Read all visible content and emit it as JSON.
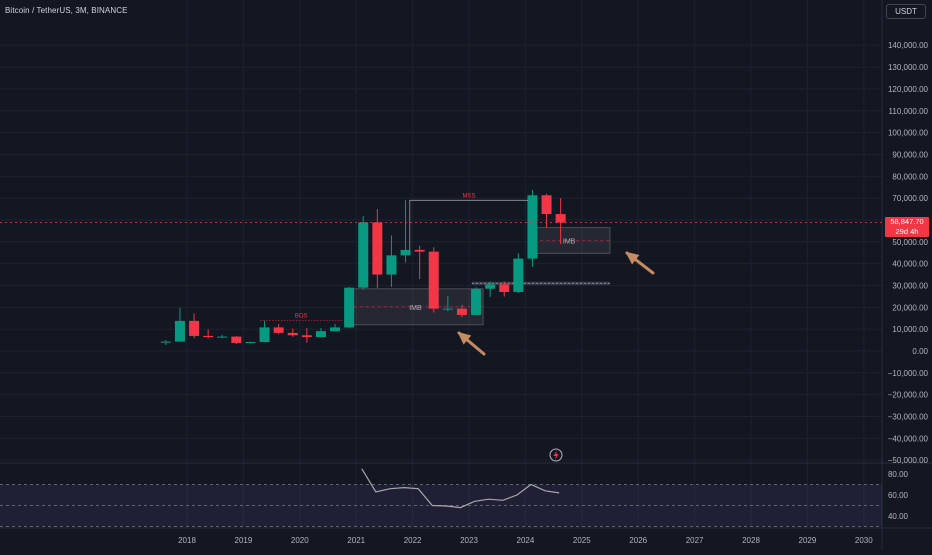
{
  "header": {
    "symbol_title": "Bitcoin / TetherUS, 3M, BINANCE",
    "currency_label": "USDT"
  },
  "price_badge": {
    "price": "58,847.70",
    "countdown": "29d 4h"
  },
  "colors": {
    "background": "#131722",
    "up": "#089981",
    "down": "#f23645",
    "axis_text": "#b2b5be",
    "arrow": "#c58b62",
    "rsi_line": "#a8a8a8",
    "rsi_band": "#7e57c2"
  },
  "chart_data": [
    {
      "type": "candlestick",
      "ylim": [
        -55000,
        150000
      ],
      "xlim": [
        2017.2,
        2030.5
      ],
      "y_ticks": [
        -50000,
        -40000,
        -30000,
        -20000,
        -10000,
        0,
        10000,
        20000,
        30000,
        40000,
        50000,
        60000,
        70000,
        80000,
        90000,
        100000,
        110000,
        120000,
        130000,
        140000
      ],
      "y_tick_labels": [
        "−50,000.00",
        "−40,000.00",
        "−30,000.00",
        "−20,000.00",
        "−10,000.00",
        "0.00",
        "10,000.00",
        "20,000.00",
        "30,000.00",
        "40,000.00",
        "50,000.00",
        "60,000.00",
        "70,000.00",
        "80,000.00",
        "90,000.00",
        "100,000.00",
        "110,000.00",
        "120,000.00",
        "130,000.00",
        "140,000.00"
      ],
      "x_ticks": [
        2018,
        2019,
        2020,
        2021,
        2022,
        2023,
        2024,
        2025,
        2026,
        2027,
        2028,
        2029,
        2030
      ],
      "x_tick_labels": [
        "2018",
        "2019",
        "2020",
        "2021",
        "2022",
        "2023",
        "2024",
        "2025",
        "2026",
        "2027",
        "2028",
        "2029",
        "2030"
      ],
      "last_price": 58847.7,
      "candles": [
        {
          "t": 2017.625,
          "o": 4300,
          "h": 5000,
          "l": 2800,
          "c": 4300
        },
        {
          "t": 2017.875,
          "o": 4300,
          "h": 19800,
          "l": 4300,
          "c": 13800
        },
        {
          "t": 2018.125,
          "o": 13800,
          "h": 17200,
          "l": 5900,
          "c": 6900
        },
        {
          "t": 2018.375,
          "o": 6900,
          "h": 9900,
          "l": 5800,
          "c": 6400
        },
        {
          "t": 2018.625,
          "o": 6400,
          "h": 7400,
          "l": 5900,
          "c": 6600
        },
        {
          "t": 2018.875,
          "o": 6600,
          "h": 6800,
          "l": 3200,
          "c": 3700
        },
        {
          "t": 2019.125,
          "o": 3700,
          "h": 4200,
          "l": 3300,
          "c": 4100
        },
        {
          "t": 2019.375,
          "o": 4100,
          "h": 13900,
          "l": 4000,
          "c": 10800
        },
        {
          "t": 2019.625,
          "o": 10800,
          "h": 12300,
          "l": 7700,
          "c": 8300
        },
        {
          "t": 2019.875,
          "o": 8300,
          "h": 10300,
          "l": 6500,
          "c": 7200
        },
        {
          "t": 2020.125,
          "o": 7200,
          "h": 10500,
          "l": 3800,
          "c": 6400
        },
        {
          "t": 2020.375,
          "o": 6400,
          "h": 10500,
          "l": 6200,
          "c": 9100
        },
        {
          "t": 2020.625,
          "o": 9100,
          "h": 12400,
          "l": 8900,
          "c": 10800
        },
        {
          "t": 2020.875,
          "o": 10800,
          "h": 29300,
          "l": 10400,
          "c": 29000
        },
        {
          "t": 2021.125,
          "o": 29000,
          "h": 61800,
          "l": 28100,
          "c": 58900
        },
        {
          "t": 2021.375,
          "o": 58900,
          "h": 65000,
          "l": 28800,
          "c": 35000
        },
        {
          "t": 2021.625,
          "o": 35000,
          "h": 52900,
          "l": 29300,
          "c": 43800
        },
        {
          "t": 2021.875,
          "o": 43800,
          "h": 69000,
          "l": 40500,
          "c": 46300
        },
        {
          "t": 2022.125,
          "o": 46300,
          "h": 48200,
          "l": 32900,
          "c": 45500
        },
        {
          "t": 2022.375,
          "o": 45500,
          "h": 47500,
          "l": 17600,
          "c": 19400
        },
        {
          "t": 2022.625,
          "o": 19400,
          "h": 25200,
          "l": 18200,
          "c": 19400
        },
        {
          "t": 2022.875,
          "o": 19400,
          "h": 21100,
          "l": 15500,
          "c": 16500
        },
        {
          "t": 2023.125,
          "o": 16500,
          "h": 29200,
          "l": 16500,
          "c": 28500
        },
        {
          "t": 2023.375,
          "o": 28500,
          "h": 31800,
          "l": 24800,
          "c": 30500
        },
        {
          "t": 2023.625,
          "o": 30500,
          "h": 31800,
          "l": 24900,
          "c": 27000
        },
        {
          "t": 2023.875,
          "o": 27000,
          "h": 44700,
          "l": 26500,
          "c": 42300
        },
        {
          "t": 2024.125,
          "o": 42300,
          "h": 73800,
          "l": 38500,
          "c": 71300
        },
        {
          "t": 2024.375,
          "o": 71300,
          "h": 72000,
          "l": 56500,
          "c": 62700
        },
        {
          "t": 2024.625,
          "o": 62700,
          "h": 70000,
          "l": 49000,
          "c": 58800
        }
      ],
      "annotations": [
        {
          "label": "BOS",
          "x0": 2019.3,
          "x1": 2020.75,
          "y": 13900
        },
        {
          "label": "MSS",
          "x0": 2021.95,
          "x1": 2024.05,
          "y": 69000
        },
        {
          "label": "IMB",
          "x0": 2020.85,
          "x1": 2023.25,
          "y0": 12000,
          "y1": 28500
        },
        {
          "label": "IMB",
          "x0": 2024.05,
          "x1": 2025.5,
          "y0": 44700,
          "y1": 56500
        }
      ],
      "support_line": {
        "x0": 2023.05,
        "x1": 2025.5,
        "y": 31000
      }
    },
    {
      "type": "line",
      "ylim": [
        30,
        90
      ],
      "y_ticks": [
        40,
        60,
        80
      ],
      "y_tick_labels": [
        "40.00",
        "60.00",
        "80.00"
      ],
      "band": [
        30,
        70
      ],
      "levels": [
        30,
        50,
        70
      ],
      "x": [
        2021.1,
        2021.35,
        2021.6,
        2021.85,
        2022.1,
        2022.35,
        2022.6,
        2022.85,
        2023.1,
        2023.35,
        2023.6,
        2023.85,
        2024.1,
        2024.35,
        2024.6
      ],
      "values": [
        85,
        63,
        66,
        67,
        66,
        50,
        49.5,
        48,
        54,
        56,
        55,
        60,
        70,
        64,
        62
      ]
    }
  ]
}
